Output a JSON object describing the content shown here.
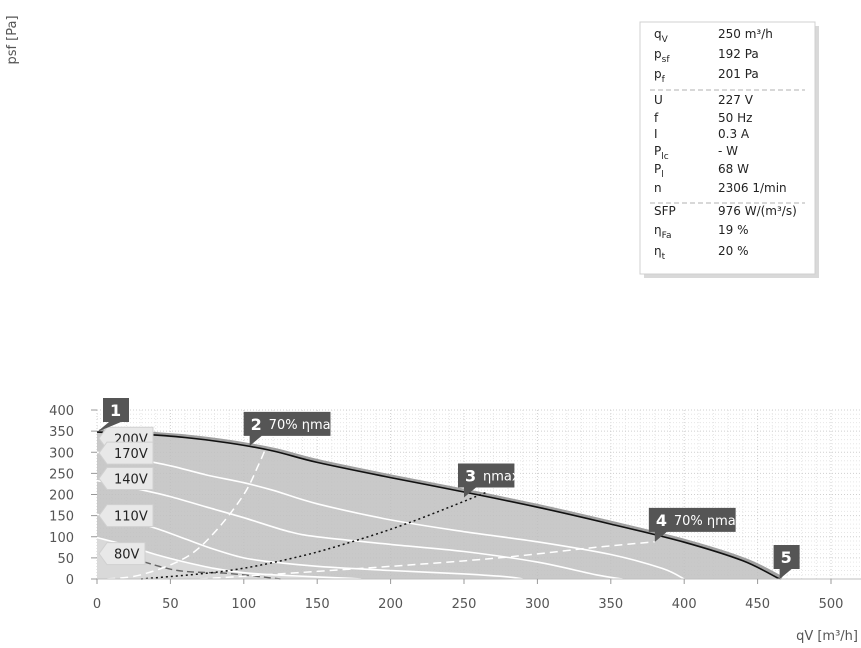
{
  "chart_data": {
    "type": "line",
    "xlabel": "qV [m³/h]",
    "ylabel": "psf [Pa]",
    "xlim": [
      0,
      500
    ],
    "ylim": [
      0,
      400
    ],
    "x_ticks": [
      "0",
      "50",
      "100",
      "150",
      "200",
      "250",
      "300",
      "350",
      "400",
      "450",
      "500"
    ],
    "y_ticks": [
      "0",
      "50",
      "100",
      "150",
      "200",
      "250",
      "300",
      "350",
      "400"
    ],
    "grid": true,
    "fan_curves": [
      {
        "name": "200V",
        "points": [
          [
            0,
            348
          ],
          [
            30,
            343
          ],
          [
            60,
            335
          ],
          [
            90,
            322
          ],
          [
            120,
            303
          ],
          [
            150,
            276
          ],
          [
            200,
            240
          ],
          [
            250,
            206
          ],
          [
            300,
            170
          ],
          [
            350,
            130
          ],
          [
            400,
            87
          ],
          [
            440,
            43
          ],
          [
            465,
            0
          ]
        ]
      },
      {
        "name": "170V",
        "points": [
          [
            0,
            300
          ],
          [
            25,
            285
          ],
          [
            50,
            268
          ],
          [
            75,
            246
          ],
          [
            100,
            228
          ],
          [
            120,
            210
          ],
          [
            150,
            178
          ],
          [
            200,
            140
          ],
          [
            250,
            112
          ],
          [
            300,
            88
          ],
          [
            350,
            58
          ],
          [
            385,
            25
          ],
          [
            400,
            0
          ]
        ]
      },
      {
        "name": "140V",
        "points": [
          [
            0,
            233
          ],
          [
            25,
            215
          ],
          [
            50,
            195
          ],
          [
            75,
            170
          ],
          [
            100,
            145
          ],
          [
            130,
            113
          ],
          [
            150,
            100
          ],
          [
            200,
            82
          ],
          [
            250,
            65
          ],
          [
            300,
            40
          ],
          [
            340,
            10
          ],
          [
            358,
            0
          ]
        ]
      },
      {
        "name": "110V",
        "points": [
          [
            0,
            153
          ],
          [
            20,
            140
          ],
          [
            40,
            120
          ],
          [
            60,
            95
          ],
          [
            80,
            70
          ],
          [
            100,
            50
          ],
          [
            120,
            40
          ],
          [
            150,
            30
          ],
          [
            200,
            20
          ],
          [
            250,
            12
          ],
          [
            280,
            5
          ],
          [
            290,
            0
          ]
        ]
      },
      {
        "name": "80V",
        "points": [
          [
            0,
            98
          ],
          [
            20,
            80
          ],
          [
            40,
            58
          ],
          [
            60,
            40
          ],
          [
            80,
            25
          ],
          [
            100,
            15
          ],
          [
            120,
            10
          ],
          [
            150,
            5
          ],
          [
            170,
            2
          ],
          [
            180,
            0
          ]
        ]
      }
    ],
    "system_curves": [
      {
        "name": "70% ηmax",
        "style": "dashed-white",
        "points": [
          [
            7,
            0
          ],
          [
            30,
            10
          ],
          [
            60,
            50
          ],
          [
            80,
            110
          ],
          [
            100,
            200
          ],
          [
            110,
            270
          ],
          [
            115,
            310
          ]
        ]
      },
      {
        "name": "ηmax",
        "style": "dotted-black",
        "points": [
          [
            30,
            0
          ],
          [
            90,
            20
          ],
          [
            140,
            55
          ],
          [
            180,
            95
          ],
          [
            210,
            130
          ],
          [
            240,
            170
          ],
          [
            265,
            205
          ]
        ]
      },
      {
        "name": "70% ηmax",
        "style": "dashed-white",
        "points": [
          [
            70,
            0
          ],
          [
            150,
            18
          ],
          [
            220,
            35
          ],
          [
            280,
            52
          ],
          [
            340,
            75
          ],
          [
            380,
            88
          ]
        ]
      }
    ],
    "operating_line_80V": {
      "points": [
        [
          25,
          48
        ],
        [
          55,
          20
        ],
        [
          90,
          13
        ],
        [
          125,
          0
        ]
      ]
    },
    "voltage_labels": [
      {
        "text": "200V",
        "x": 0,
        "y": 333
      },
      {
        "text": "170V",
        "x": 0,
        "y": 298
      },
      {
        "text": "140V",
        "x": 0,
        "y": 238
      },
      {
        "text": "110V",
        "x": 0,
        "y": 150
      },
      {
        "text": "80V",
        "x": 0,
        "y": 60
      }
    ],
    "markers": [
      {
        "num": "1",
        "label": "",
        "x": 0,
        "y": 348
      },
      {
        "num": "2",
        "label": "70% ηmax",
        "x": 104,
        "y": 315
      },
      {
        "num": "3",
        "label": "ηmax",
        "x": 250,
        "y": 193
      },
      {
        "num": "4",
        "label": "70% ηmax",
        "x": 380,
        "y": 88
      },
      {
        "num": "5",
        "label": "",
        "x": 465,
        "y": 0
      }
    ],
    "info_rows": [
      {
        "label": "qV",
        "value": "250 m³/h"
      },
      {
        "label": "psf",
        "value": "192 Pa"
      },
      {
        "label": "pf",
        "value": "201 Pa"
      },
      {
        "label": "U",
        "value": "227 V"
      },
      {
        "label": "f",
        "value": "50 Hz"
      },
      {
        "label": "I",
        "value": "0.3 A"
      },
      {
        "label": "Plc",
        "value": "- W"
      },
      {
        "label": "Pl",
        "value": "68 W"
      },
      {
        "label": "n",
        "value": "2306 1/min"
      },
      {
        "label": "SFP",
        "value": "976 W/(m³/s)"
      },
      {
        "label": "ηFa",
        "value": "19 %"
      },
      {
        "label": "ηt",
        "value": "20 %"
      }
    ],
    "colors": {
      "region": "#c0c0c0",
      "region_light": "#d9d9d9",
      "marker": "#555555",
      "curve": "#ffffff",
      "max_curve": "#111111"
    }
  }
}
